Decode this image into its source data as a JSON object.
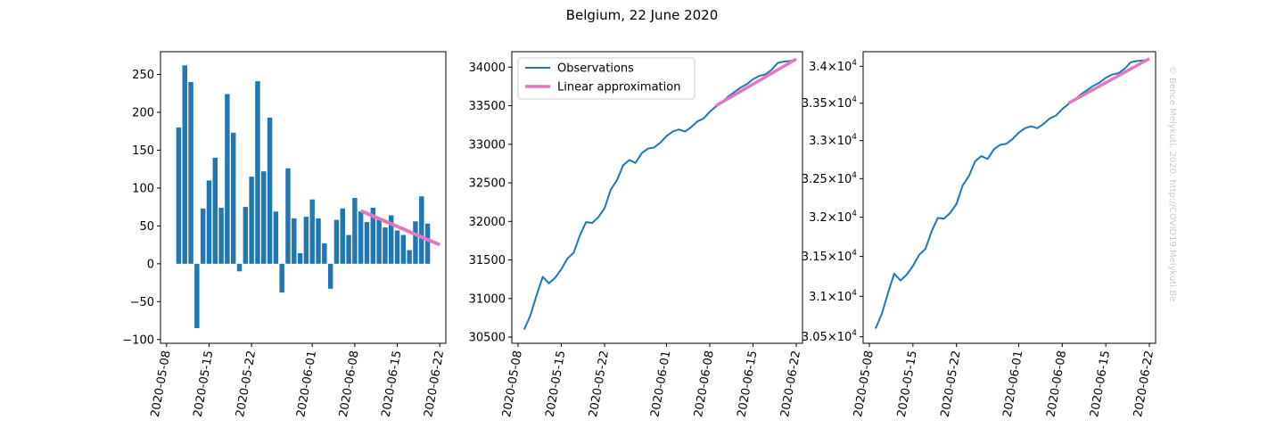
{
  "figure": {
    "title": "Belgium, 22 June 2020",
    "credit": "© Bence Melykuti, 2020. http://COVID19.Melykuti.Be"
  },
  "colors": {
    "observations": "#1f77b4",
    "fit": "#e377c2",
    "credit": "#c8c8c8"
  },
  "chart_data": [
    {
      "type": "bar",
      "title": "",
      "xlabel": "",
      "ylabel": "",
      "xlim": [
        "2020-05-07",
        "2020-06-23"
      ],
      "ylim": [
        -105,
        280
      ],
      "yticks": [
        -100,
        -50,
        0,
        50,
        100,
        150,
        200,
        250
      ],
      "xticks": [
        "2020-05-08",
        "2020-05-15",
        "2020-05-22",
        "2020-06-01",
        "2020-06-08",
        "2020-06-15",
        "2020-06-22"
      ],
      "x": [
        "2020-05-10",
        "2020-05-11",
        "2020-05-12",
        "2020-05-13",
        "2020-05-14",
        "2020-05-15",
        "2020-05-16",
        "2020-05-17",
        "2020-05-18",
        "2020-05-19",
        "2020-05-20",
        "2020-05-21",
        "2020-05-22",
        "2020-05-23",
        "2020-05-24",
        "2020-05-25",
        "2020-05-26",
        "2020-05-27",
        "2020-05-28",
        "2020-05-29",
        "2020-05-30",
        "2020-05-31",
        "2020-06-01",
        "2020-06-02",
        "2020-06-03",
        "2020-06-04",
        "2020-06-05",
        "2020-06-06",
        "2020-06-07",
        "2020-06-08",
        "2020-06-09",
        "2020-06-10",
        "2020-06-11",
        "2020-06-12",
        "2020-06-13",
        "2020-06-14",
        "2020-06-15",
        "2020-06-16",
        "2020-06-17",
        "2020-06-18",
        "2020-06-19",
        "2020-06-20"
      ],
      "values": [
        180,
        262,
        240,
        -85,
        73,
        110,
        140,
        74,
        224,
        173,
        -10,
        75,
        115,
        241,
        122,
        193,
        69,
        -38,
        126,
        60,
        14,
        62,
        85,
        60,
        27,
        -33,
        58,
        73,
        38,
        87,
        69,
        55,
        74,
        58,
        48,
        64,
        44,
        38,
        18,
        56,
        89,
        53
      ],
      "series": [
        {
          "name": "Linear approximation",
          "type": "line",
          "x": [
            "2020-06-09",
            "2020-06-22"
          ],
          "values": [
            70,
            25
          ]
        }
      ]
    },
    {
      "type": "line",
      "title": "",
      "xlabel": "",
      "ylabel": "",
      "xlim": [
        "2020-05-07",
        "2020-06-23"
      ],
      "ylim": [
        30420,
        34200
      ],
      "yticks": [
        30500,
        31000,
        31500,
        32000,
        32500,
        33000,
        33500,
        34000
      ],
      "xticks": [
        "2020-05-08",
        "2020-05-15",
        "2020-05-22",
        "2020-06-01",
        "2020-06-08",
        "2020-06-15",
        "2020-06-22"
      ],
      "legend": "top-left",
      "series": [
        {
          "name": "Observations",
          "x": [
            "2020-05-09",
            "2020-05-10",
            "2020-05-11",
            "2020-05-12",
            "2020-05-13",
            "2020-05-14",
            "2020-05-15",
            "2020-05-16",
            "2020-05-17",
            "2020-05-18",
            "2020-05-19",
            "2020-05-20",
            "2020-05-21",
            "2020-05-22",
            "2020-05-23",
            "2020-05-24",
            "2020-05-25",
            "2020-05-26",
            "2020-05-27",
            "2020-05-28",
            "2020-05-29",
            "2020-05-30",
            "2020-05-31",
            "2020-06-01",
            "2020-06-02",
            "2020-06-03",
            "2020-06-04",
            "2020-06-05",
            "2020-06-06",
            "2020-06-07",
            "2020-06-08",
            "2020-06-09",
            "2020-06-10",
            "2020-06-11",
            "2020-06-12",
            "2020-06-13",
            "2020-06-14",
            "2020-06-15",
            "2020-06-16",
            "2020-06-17",
            "2020-06-18",
            "2020-06-19",
            "2020-06-20",
            "2020-06-21",
            "2020-06-22"
          ],
          "values": [
            30600,
            30780,
            31042,
            31282,
            31197,
            31270,
            31380,
            31520,
            31594,
            31818,
            31991,
            31981,
            32056,
            32171,
            32412,
            32534,
            32727,
            32796,
            32758,
            32884,
            32944,
            32958,
            33020,
            33105,
            33165,
            33192,
            33165,
            33223,
            33296,
            33334,
            33421,
            33490,
            33545,
            33619,
            33677,
            33735,
            33779,
            33843,
            33887,
            33905,
            33965,
            34055,
            34073,
            34080,
            34098
          ]
        },
        {
          "name": "Linear approximation",
          "x": [
            "2020-06-09",
            "2020-06-22"
          ],
          "values": [
            33500,
            34105
          ]
        }
      ]
    },
    {
      "type": "line",
      "title": "",
      "xlabel": "",
      "ylabel": "",
      "yscale": "log",
      "xlim": [
        "2020-05-07",
        "2020-06-23"
      ],
      "ylim": [
        30420,
        34200
      ],
      "yticks": [
        30500,
        31000,
        31500,
        32000,
        32500,
        33000,
        33500,
        34000
      ],
      "ytick_labels": [
        {
          "mant": "3.05",
          "exp": "4"
        },
        {
          "mant": "3.1",
          "exp": "4"
        },
        {
          "mant": "3.15",
          "exp": "4"
        },
        {
          "mant": "3.2",
          "exp": "4"
        },
        {
          "mant": "3.25",
          "exp": "4"
        },
        {
          "mant": "3.3",
          "exp": "4"
        },
        {
          "mant": "3.35",
          "exp": "4"
        },
        {
          "mant": "3.4",
          "exp": "4"
        }
      ],
      "xticks": [
        "2020-05-08",
        "2020-05-15",
        "2020-05-22",
        "2020-06-01",
        "2020-06-08",
        "2020-06-15",
        "2020-06-22"
      ],
      "series": [
        {
          "name": "Observations",
          "x": [
            "2020-05-09",
            "2020-05-10",
            "2020-05-11",
            "2020-05-12",
            "2020-05-13",
            "2020-05-14",
            "2020-05-15",
            "2020-05-16",
            "2020-05-17",
            "2020-05-18",
            "2020-05-19",
            "2020-05-20",
            "2020-05-21",
            "2020-05-22",
            "2020-05-23",
            "2020-05-24",
            "2020-05-25",
            "2020-05-26",
            "2020-05-27",
            "2020-05-28",
            "2020-05-29",
            "2020-05-30",
            "2020-05-31",
            "2020-06-01",
            "2020-06-02",
            "2020-06-03",
            "2020-06-04",
            "2020-06-05",
            "2020-06-06",
            "2020-06-07",
            "2020-06-08",
            "2020-06-09",
            "2020-06-10",
            "2020-06-11",
            "2020-06-12",
            "2020-06-13",
            "2020-06-14",
            "2020-06-15",
            "2020-06-16",
            "2020-06-17",
            "2020-06-18",
            "2020-06-19",
            "2020-06-20",
            "2020-06-21",
            "2020-06-22"
          ],
          "values": [
            30600,
            30780,
            31042,
            31282,
            31197,
            31270,
            31380,
            31520,
            31594,
            31818,
            31991,
            31981,
            32056,
            32171,
            32412,
            32534,
            32727,
            32796,
            32758,
            32884,
            32944,
            32958,
            33020,
            33105,
            33165,
            33192,
            33165,
            33223,
            33296,
            33334,
            33421,
            33490,
            33545,
            33619,
            33677,
            33735,
            33779,
            33843,
            33887,
            33905,
            33965,
            34055,
            34073,
            34080,
            34098
          ]
        },
        {
          "name": "Linear approximation",
          "x": [
            "2020-06-09",
            "2020-06-22"
          ],
          "values": [
            33500,
            34105
          ]
        }
      ]
    }
  ]
}
